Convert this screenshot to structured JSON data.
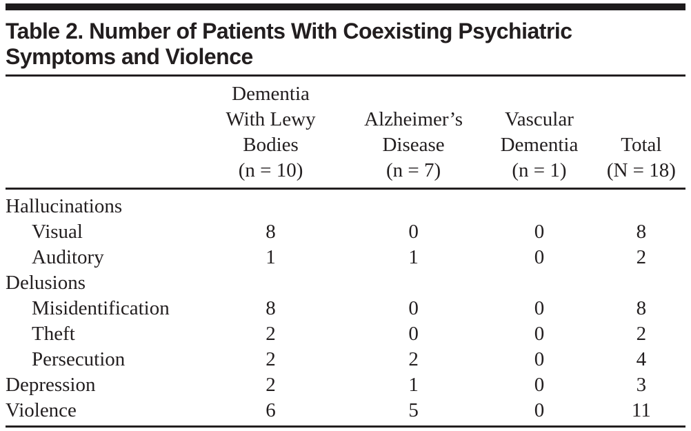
{
  "title": "Table 2. Number of Patients With Coexisting Psychiatric\nSymptoms and Violence",
  "table": {
    "columns": [
      {
        "label": "Dementia\nWith Lewy\nBodies\n(n = 10)"
      },
      {
        "label": "Alzheimer’s\nDisease\n(n = 7)"
      },
      {
        "label": "Vascular\nDementia\n(n = 1)"
      },
      {
        "label": "Total\n(N = 18)"
      }
    ],
    "rows": [
      {
        "label": "Hallucinations",
        "indent": false,
        "values": [
          "",
          "",
          "",
          ""
        ]
      },
      {
        "label": "Visual",
        "indent": true,
        "values": [
          "8",
          "0",
          "0",
          "8"
        ]
      },
      {
        "label": "Auditory",
        "indent": true,
        "values": [
          "1",
          "1",
          "0",
          "2"
        ]
      },
      {
        "label": "Delusions",
        "indent": false,
        "values": [
          "",
          "",
          "",
          ""
        ]
      },
      {
        "label": "Misidentification",
        "indent": true,
        "values": [
          "8",
          "0",
          "0",
          "8"
        ]
      },
      {
        "label": "Theft",
        "indent": true,
        "values": [
          "2",
          "0",
          "0",
          "2"
        ]
      },
      {
        "label": "Persecution",
        "indent": true,
        "values": [
          "2",
          "2",
          "0",
          "4"
        ]
      },
      {
        "label": "Depression",
        "indent": false,
        "values": [
          "2",
          "1",
          "0",
          "3"
        ]
      },
      {
        "label": "Violence",
        "indent": false,
        "values": [
          "6",
          "5",
          "0",
          "11"
        ]
      }
    ]
  },
  "colors": {
    "text": "#221e1f",
    "rule": "#221e1f",
    "background": "#ffffff"
  }
}
